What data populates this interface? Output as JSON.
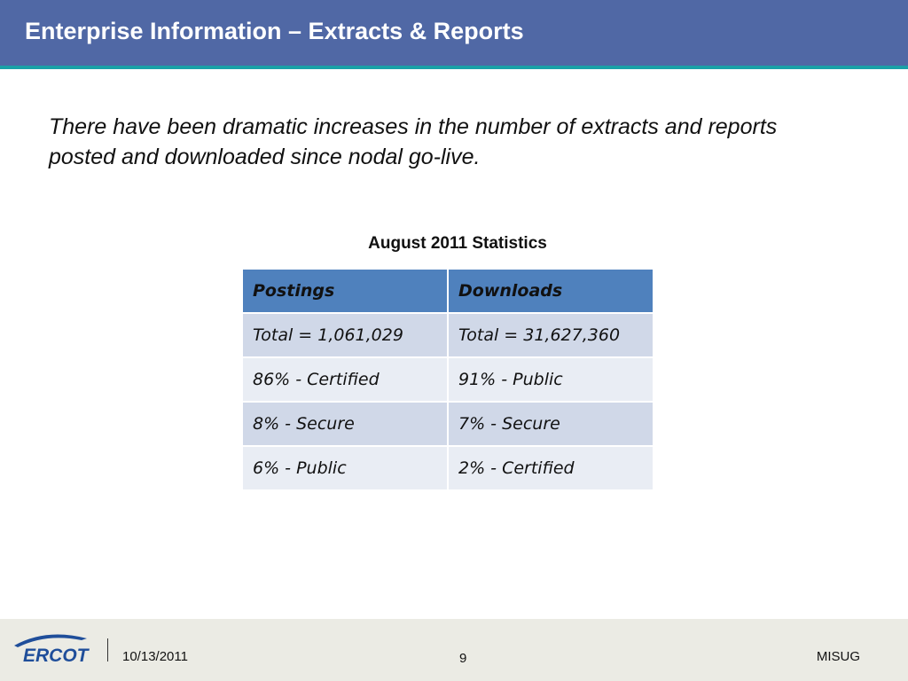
{
  "slide": {
    "title": "Enterprise Information – Extracts & Reports",
    "intro": "There have been dramatic increases in the number of extracts and reports posted and downloaded since nodal go-live.",
    "table_title": "August 2011 Statistics"
  },
  "table": {
    "headers": [
      "Postings",
      "Downloads"
    ],
    "rows": [
      [
        "Total = 1,061,029",
        "Total = 31,627,360"
      ],
      [
        "86% - Certified",
        "91% - Public"
      ],
      [
        "8% - Secure",
        "7% - Secure"
      ],
      [
        "6% - Public",
        "2% - Certified"
      ]
    ]
  },
  "footer": {
    "logo_text": "ERCOT",
    "date": "10/13/2011",
    "page_number": "9",
    "org": "MISUG"
  },
  "colors": {
    "title_bar": "#5068a5",
    "title_accent": "#1aa1a7",
    "table_header": "#4f81bd",
    "row_dark": "#d0d8e8",
    "row_light": "#e9edf4",
    "logo_blue": "#1f4e9a"
  }
}
